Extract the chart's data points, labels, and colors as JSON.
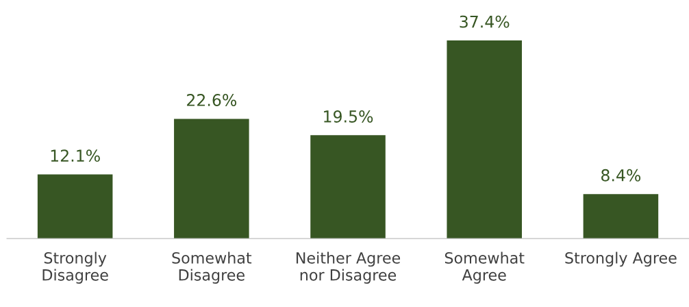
{
  "chart_data": {
    "type": "bar",
    "categories": [
      "Strongly\nDisagree",
      "Somewhat\nDisagree",
      "Neither Agree\nnor Disagree",
      "Somewhat\nAgree",
      "Strongly Agree"
    ],
    "values": [
      12.1,
      22.6,
      19.5,
      37.4,
      8.4
    ],
    "value_labels": [
      "12.1%",
      "22.6%",
      "19.5%",
      "37.4%",
      "8.4%"
    ],
    "color": "#375623",
    "grid": false,
    "legend": false
  }
}
